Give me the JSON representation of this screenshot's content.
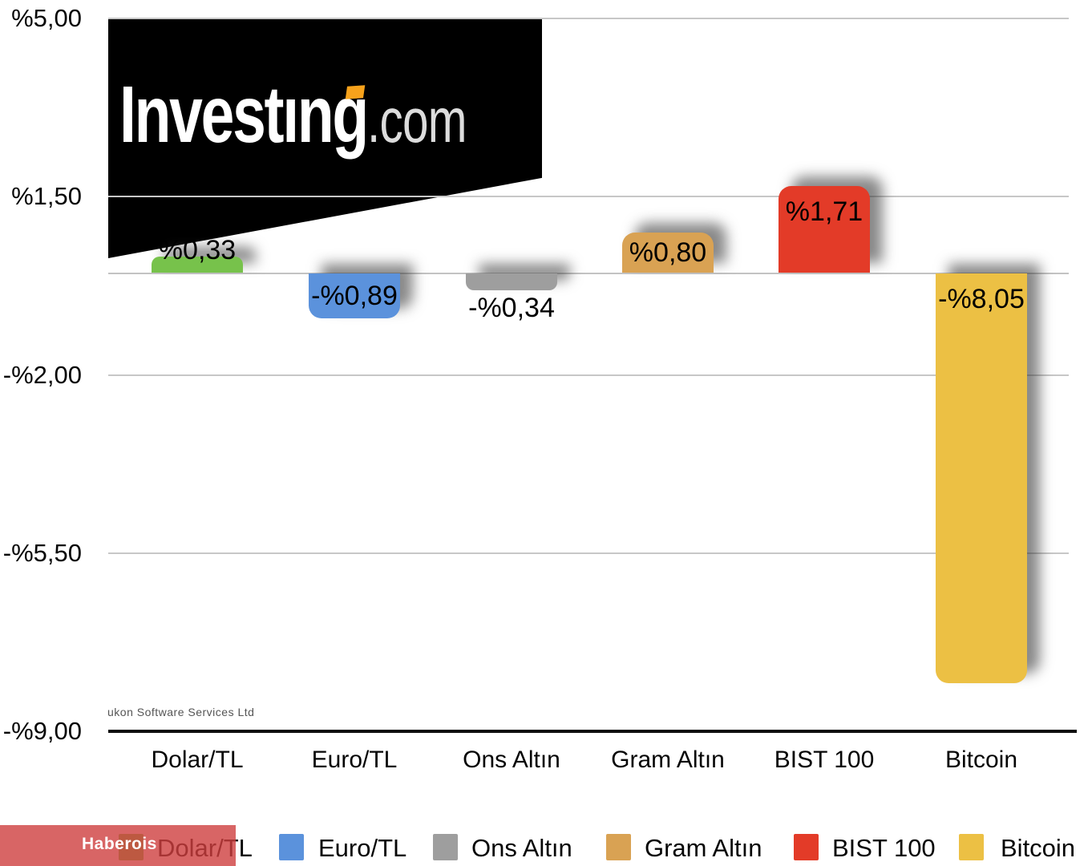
{
  "logo": {
    "brand_bold": "Investıng",
    "brand_suffix": ".com",
    "dot_color": "#f7a21b"
  },
  "footer_watermark": "ukon Software Services Ltd",
  "badge": {
    "label": "Haberois",
    "color": "#cc3e3e"
  },
  "chart_data": {
    "type": "bar",
    "title": "",
    "xlabel": "",
    "ylabel": "",
    "categories": [
      "Dolar/TL",
      "Euro/TL",
      "Ons Altın",
      "Gram Altın",
      "BIST 100",
      "Bitcoin"
    ],
    "values": [
      0.33,
      -0.89,
      -0.34,
      0.8,
      1.71,
      -8.05
    ],
    "value_labels": [
      "%0,33",
      "-%0,89",
      "-%0,34",
      "%0,80",
      "%1,71",
      "-%8,05"
    ],
    "bar_colors": [
      "#77c24b",
      "#5b92dc",
      "#9e9e9e",
      "#d9a253",
      "#e33b28",
      "#ecc044"
    ],
    "label_placements": [
      "above",
      "center",
      "below",
      "center",
      "top",
      "top"
    ],
    "y_ticks": [
      {
        "label": "%5,00",
        "value": 5.0
      },
      {
        "label": "%1,50",
        "value": 1.5
      },
      {
        "label": "-%2,00",
        "value": -2.0
      },
      {
        "label": "-%5,50",
        "value": -5.5
      },
      {
        "label": "-%9,00",
        "value": -9.0
      }
    ],
    "ylim": [
      -9.0,
      5.0
    ],
    "zero_line": true,
    "grid": true,
    "legend": {
      "position": "bottom",
      "items": [
        {
          "label": "Dolar/TL",
          "color": "#77c24b"
        },
        {
          "label": "Euro/TL",
          "color": "#5b92dc"
        },
        {
          "label": "Ons Altın",
          "color": "#9e9e9e"
        },
        {
          "label": "Gram Altın",
          "color": "#d9a253"
        },
        {
          "label": "BIST 100",
          "color": "#e33b28"
        },
        {
          "label": "Bitcoin",
          "color": "#ecc044"
        }
      ]
    }
  }
}
